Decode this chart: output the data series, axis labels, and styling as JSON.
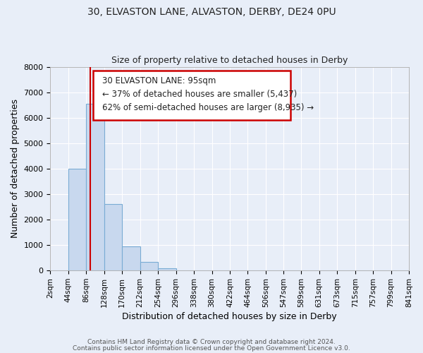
{
  "title_line1": "30, ELVASTON LANE, ALVASTON, DERBY, DE24 0PU",
  "title_line2": "Size of property relative to detached houses in Derby",
  "xlabel": "Distribution of detached houses by size in Derby",
  "ylabel": "Number of detached properties",
  "bin_edges": [
    2,
    44,
    86,
    128,
    170,
    212,
    254,
    296,
    338,
    380,
    422,
    464,
    506,
    547,
    589,
    631,
    673,
    715,
    757,
    799,
    841
  ],
  "bar_heights": [
    0,
    4000,
    6550,
    2600,
    950,
    325,
    100,
    0,
    0,
    0,
    0,
    0,
    0,
    0,
    0,
    0,
    0,
    0,
    0,
    0
  ],
  "bar_color": "#c8d8ee",
  "bar_edge_color": "#7aacd4",
  "vline_x": 95,
  "vline_color": "#cc0000",
  "ylim": [
    0,
    8000
  ],
  "yticks": [
    0,
    1000,
    2000,
    3000,
    4000,
    5000,
    6000,
    7000,
    8000
  ],
  "tick_labels": [
    "2sqm",
    "44sqm",
    "86sqm",
    "128sqm",
    "170sqm",
    "212sqm",
    "254sqm",
    "296sqm",
    "338sqm",
    "380sqm",
    "422sqm",
    "464sqm",
    "506sqm",
    "547sqm",
    "589sqm",
    "631sqm",
    "673sqm",
    "715sqm",
    "757sqm",
    "799sqm",
    "841sqm"
  ],
  "ann_line1": "30 ELVASTON LANE: 95sqm",
  "ann_line2": "← 37% of detached houses are smaller (5,437)",
  "ann_line3": "62% of semi-detached houses are larger (8,935) →",
  "footer_line1": "Contains HM Land Registry data © Crown copyright and database right 2024.",
  "footer_line2": "Contains public sector information licensed under the Open Government Licence v3.0.",
  "fig_bg": "#e8eef8",
  "plot_bg": "#e8eef8",
  "grid_color": "#ffffff",
  "title_fontsize": 10,
  "subtitle_fontsize": 9,
  "axis_label_fontsize": 9,
  "tick_fontsize": 7.5,
  "ann_fontsize": 8.5
}
